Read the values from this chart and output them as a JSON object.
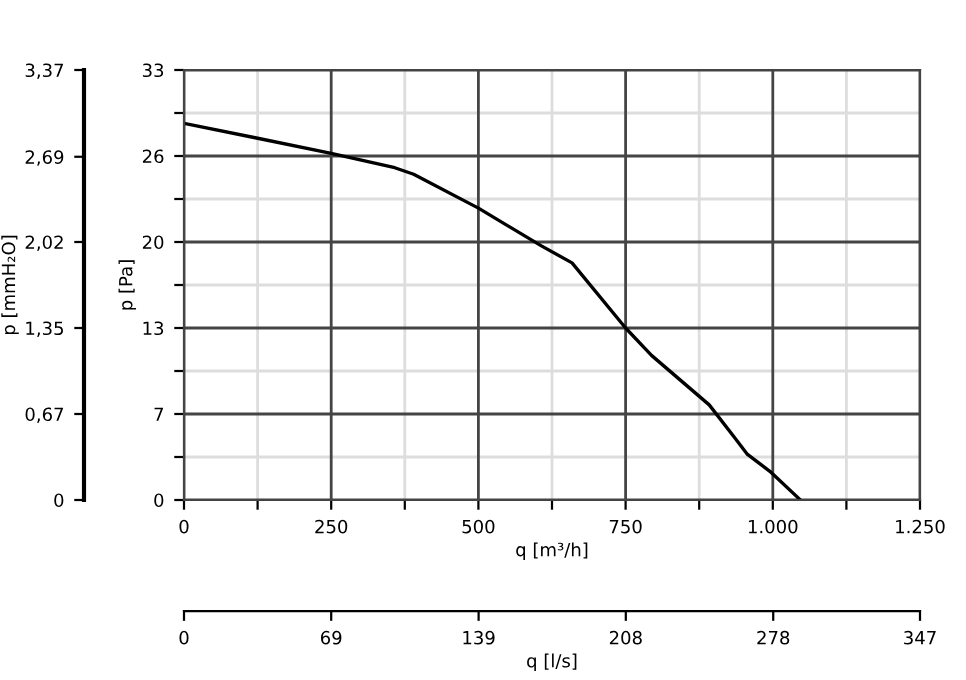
{
  "chart_data": {
    "type": "line",
    "xlabel": "q [m³/h]",
    "ylabel": "p [Pa]",
    "y2label": "p [mmH₂O]",
    "x2label": "q [l/s]",
    "x": [
      0,
      121,
      250,
      358,
      390,
      500,
      607,
      659,
      750,
      794,
      892,
      935,
      957,
      995,
      1047
    ],
    "series": [
      {
        "color": "#000000",
        "values": [
          28.9,
          27.8,
          26.6,
          25.5,
          25.0,
          22.4,
          19.5,
          18.2,
          13.2,
          11.1,
          7.3,
          4.8,
          3.5,
          2.2,
          0
        ]
      }
    ],
    "xlim": [
      0,
      1250
    ],
    "xticks": [
      0,
      {
        "value": 125,
        "label": null
      },
      250,
      {
        "value": 375,
        "label": null
      },
      500,
      {
        "value": 625,
        "label": null
      },
      750,
      {
        "value": 875,
        "label": null
      },
      {
        "value": 1000,
        "label": "1.000"
      },
      {
        "value": 1125,
        "label": null
      },
      {
        "value": 1250,
        "label": "1.250"
      }
    ],
    "ylim": [
      0,
      33
    ],
    "yticks": [
      0,
      {
        "value": 3.3,
        "label": null
      },
      {
        "value": 6.6,
        "label": "7"
      },
      {
        "value": 9.9,
        "label": null
      },
      {
        "value": 13.2,
        "label": "13"
      },
      {
        "value": 16.5,
        "label": null
      },
      {
        "value": 19.8,
        "label": "20"
      },
      {
        "value": 23.1,
        "label": null
      },
      {
        "value": 26.4,
        "label": "26"
      },
      {
        "value": 29.7,
        "label": null
      },
      33
    ],
    "y2lim": [
      0,
      3.37
    ],
    "y2ticks": [
      0,
      {
        "value": 0.674,
        "label": "0,67"
      },
      {
        "value": 1.348,
        "label": "1,35"
      },
      {
        "value": 2.022,
        "label": "2,02"
      },
      {
        "value": 2.69,
        "label": "2,69"
      },
      {
        "value": 3.37,
        "label": "3,37"
      }
    ],
    "x2lim": [
      0,
      347
    ],
    "x2ticks": [
      0,
      {
        "value": 69.4,
        "label": "69"
      },
      {
        "value": 138.9,
        "label": "139"
      },
      {
        "value": 208.3,
        "label": "208"
      },
      {
        "value": 277.8,
        "label": "278"
      },
      347
    ],
    "grid": true,
    "marker": "none",
    "line_style": "solid",
    "legend": false
  }
}
